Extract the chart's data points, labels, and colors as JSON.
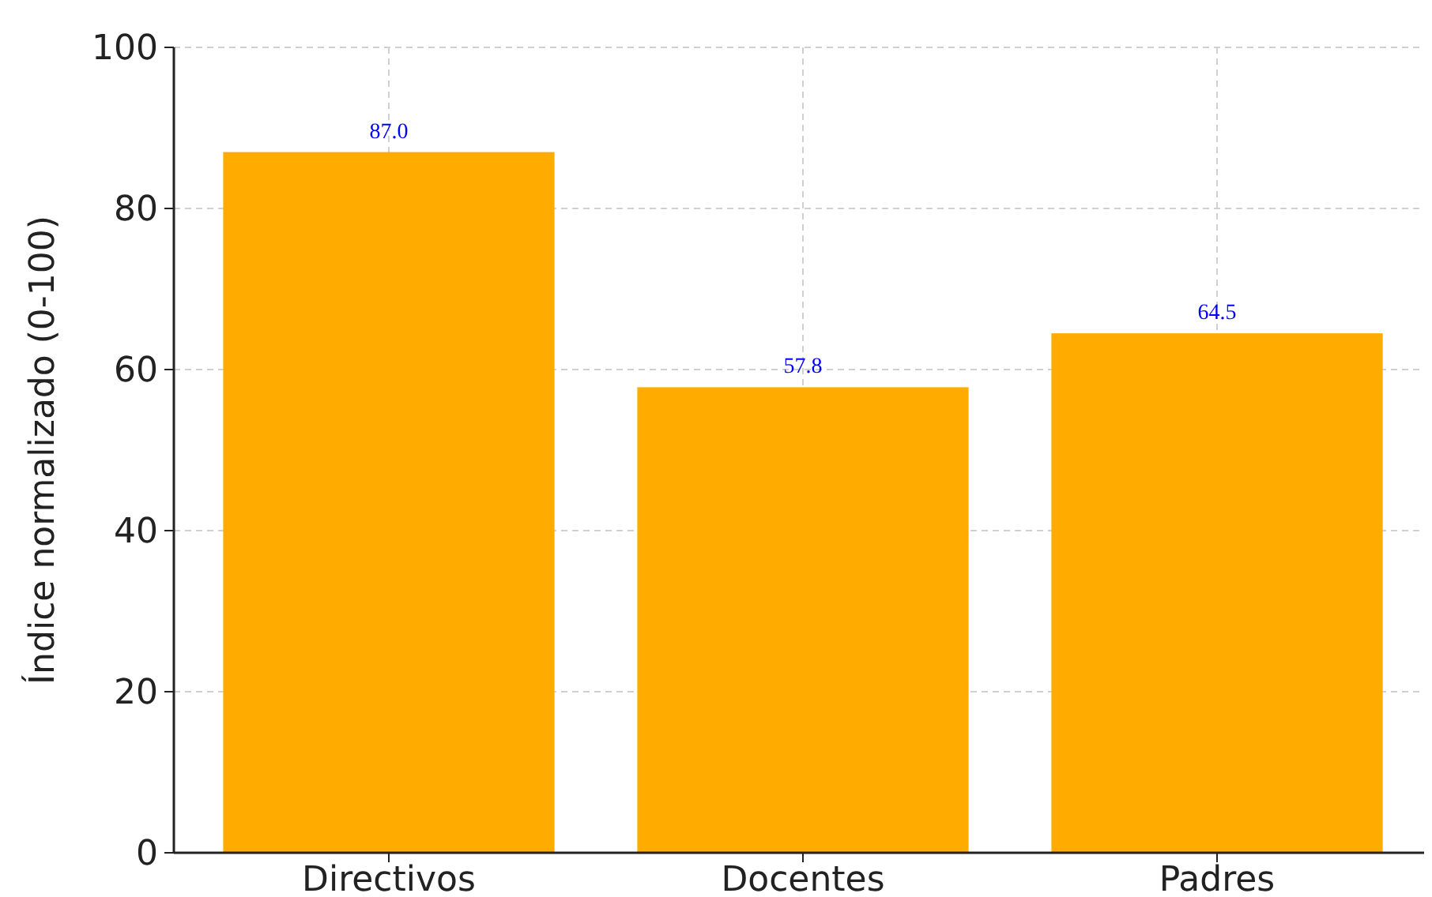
{
  "chart_data": {
    "type": "bar",
    "ylabel": "Índice normalizado (0-100)",
    "categories": [
      "Directivos",
      "Docentes",
      "Padres"
    ],
    "values": [
      87.0,
      57.8,
      64.5
    ],
    "color": "#ffab00",
    "value_labels": [
      "87.0",
      "57.8",
      "64.5"
    ],
    "ylim": [
      0,
      100
    ],
    "yticks": [
      0,
      20,
      40,
      60,
      80,
      100
    ],
    "grid": true
  }
}
